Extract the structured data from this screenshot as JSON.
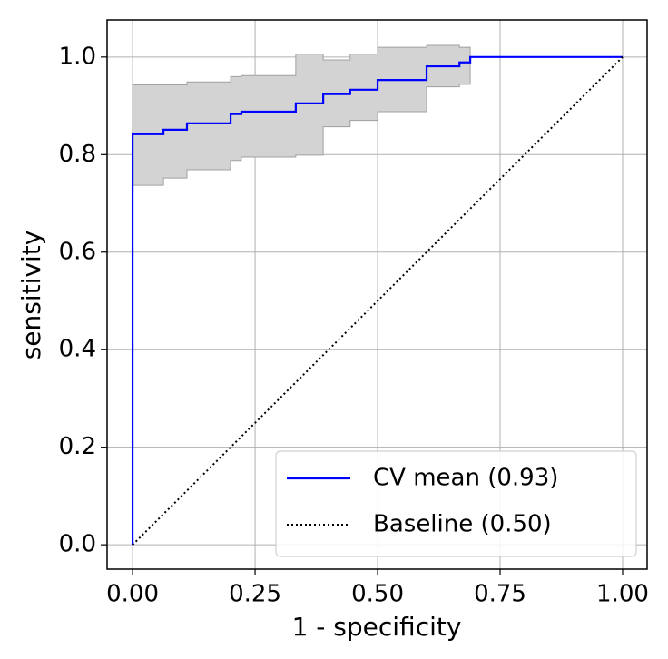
{
  "chart_data": {
    "type": "line",
    "step": "post",
    "xlabel": "1 - specificity",
    "ylabel": "sensitivity",
    "x": [
      0,
      0,
      0.063,
      0.111,
      0.2,
      0.222,
      0.333,
      0.389,
      0.444,
      0.5,
      0.6,
      0.667,
      0.689,
      1
    ],
    "series": [
      {
        "name": "CV mean (0.93)",
        "color": "#0000ff",
        "style": "solid",
        "values": [
          0,
          0.842,
          0.851,
          0.864,
          0.883,
          0.888,
          0.905,
          0.924,
          0.933,
          0.953,
          0.981,
          0.989,
          1.0,
          1.0
        ],
        "upper": [
          0,
          0.943,
          0.943,
          0.949,
          0.96,
          0.962,
          1.006,
          0.994,
          1.006,
          1.02,
          1.024,
          1.02,
          1.0,
          1.0
        ],
        "lower": [
          0,
          0.737,
          0.752,
          0.769,
          0.788,
          0.795,
          0.799,
          0.857,
          0.87,
          0.888,
          0.939,
          0.944,
          1.0,
          1.0
        ],
        "band_color": "#d3d3d3"
      },
      {
        "name": "Baseline (0.50)",
        "color": "#000000",
        "style": "dotted",
        "x": [
          0,
          1
        ],
        "values": [
          0,
          1
        ]
      }
    ],
    "xlim": [
      -0.052,
      1.05
    ],
    "ylim": [
      -0.05,
      1.076
    ],
    "xticks": [
      {
        "value": 0,
        "label": "0.00"
      },
      0.25,
      {
        "value": 0.5,
        "label": "0.50"
      },
      0.75,
      {
        "value": 1,
        "label": "1.00"
      }
    ],
    "yticks": [
      {
        "value": 0,
        "label": "0.0"
      },
      0.2,
      0.4,
      0.6,
      0.8,
      {
        "value": 1,
        "label": "1.0"
      }
    ],
    "grid": true,
    "legend": "lower right"
  }
}
